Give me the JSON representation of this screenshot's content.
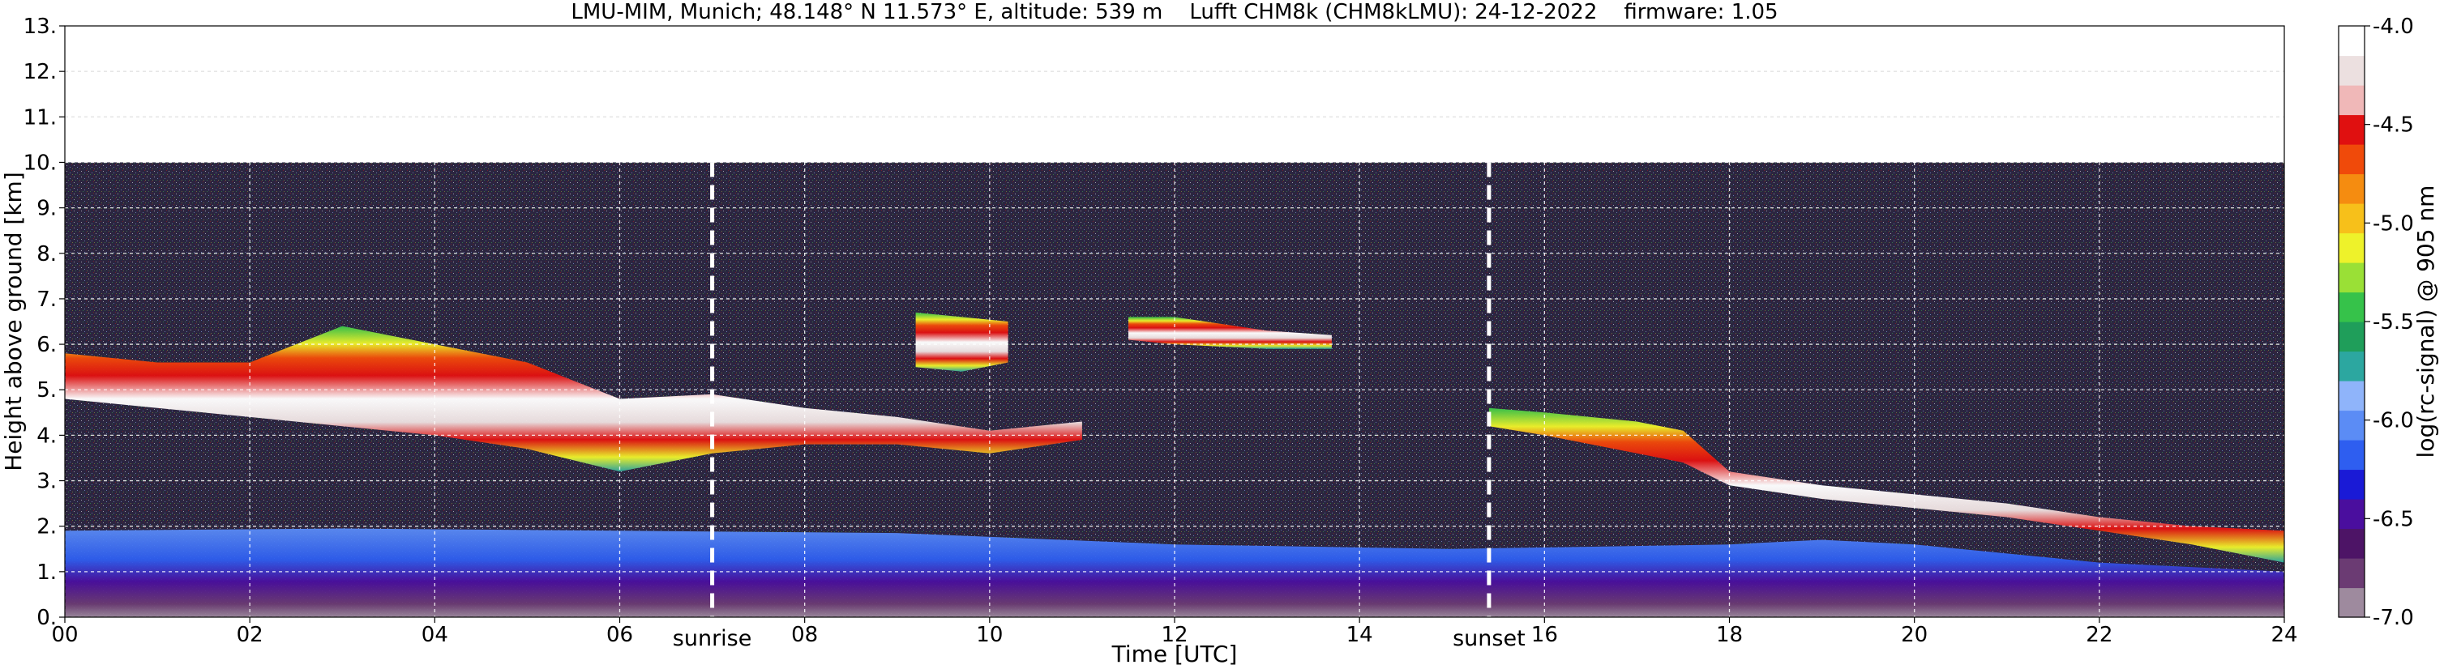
{
  "chart_data": {
    "type": "heatmap",
    "title": "LMU-MIM, Munich; 48.148° N 11.573° E, altitude: 539 m    Lufft CHM8k (CHM8kLMU): 24-12-2022    firmware: 1.05",
    "xlabel": "Time [UTC]",
    "ylabel": "Height above ground [km]",
    "xlim": [
      0,
      24
    ],
    "ylim": [
      0,
      13
    ],
    "x_ticks": [
      "00",
      "02",
      "04",
      "06",
      "08",
      "10",
      "12",
      "14",
      "16",
      "18",
      "20",
      "22",
      "24"
    ],
    "y_ticks": [
      "0.",
      "1.",
      "2.",
      "3.",
      "4.",
      "5.",
      "6.",
      "7.",
      "8.",
      "9.",
      "10.",
      "11.",
      "12.",
      "13."
    ],
    "grid": true,
    "data_top_km": 10.0,
    "events": [
      {
        "label": "sunrise",
        "time_h": 7.0
      },
      {
        "label": "sunset",
        "time_h": 15.4
      }
    ],
    "colorbar": {
      "label": "log(rc-signal) @ 905 nm",
      "min": -7.0,
      "max": -4.0,
      "ticks": [
        "-4.0",
        "-4.5",
        "-5.0",
        "-5.5",
        "-6.0",
        "-6.5",
        "-7.0"
      ],
      "colors": [
        "#9e8a9e",
        "#6b3b73",
        "#4d1466",
        "#4a0e9e",
        "#1a1ad6",
        "#2e5ef0",
        "#5b8cf5",
        "#8fb4fa",
        "#2ca7a0",
        "#1f9e5a",
        "#36c24a",
        "#9ae036",
        "#eef22a",
        "#f7c01a",
        "#f58c10",
        "#f04a0a",
        "#e01010",
        "#f0b8b8",
        "#ece0e0",
        "#ffffff"
      ]
    },
    "background_color": "#2b2540",
    "layers": [
      {
        "name": "boundary layer",
        "t": [
          0,
          3,
          6,
          9,
          12,
          15,
          18,
          19,
          20,
          22,
          24
        ],
        "bottom": [
          0,
          0,
          0,
          0,
          0,
          0,
          0,
          0,
          0,
          0,
          0
        ],
        "top": [
          1.9,
          1.95,
          1.9,
          1.85,
          1.6,
          1.5,
          1.6,
          1.7,
          1.6,
          1.2,
          1.0
        ]
      },
      {
        "name": "cloud layer 1",
        "t": [
          0,
          1,
          2,
          3,
          4,
          5,
          6,
          7,
          8,
          9,
          10,
          11
        ],
        "bottom": [
          4.8,
          4.6,
          4.4,
          4.2,
          4.0,
          3.7,
          3.2,
          3.6,
          3.8,
          3.8,
          3.6,
          3.9
        ],
        "top": [
          5.8,
          5.6,
          5.6,
          6.4,
          6.0,
          5.6,
          4.8,
          4.9,
          4.6,
          4.4,
          4.1,
          4.3
        ]
      },
      {
        "name": "cloud layer 2",
        "t": [
          11.5,
          12,
          13,
          13.7
        ],
        "bottom": [
          6.1,
          6.0,
          5.9,
          5.9
        ],
        "top": [
          6.6,
          6.6,
          6.3,
          6.2
        ]
      },
      {
        "name": "cloud layer 3",
        "t": [
          15.4,
          16,
          17,
          17.5,
          18,
          19,
          20,
          21,
          22,
          23,
          24
        ],
        "bottom": [
          4.2,
          4.0,
          3.6,
          3.4,
          2.9,
          2.6,
          2.4,
          2.2,
          1.9,
          1.6,
          1.2
        ],
        "top": [
          4.6,
          4.5,
          4.3,
          4.1,
          3.2,
          2.9,
          2.7,
          2.5,
          2.2,
          2.0,
          1.9
        ]
      },
      {
        "name": "cloud layer 4",
        "t": [
          9.2,
          9.7,
          10.2
        ],
        "bottom": [
          5.5,
          5.4,
          5.6
        ],
        "top": [
          6.7,
          6.6,
          6.5
        ]
      }
    ]
  }
}
